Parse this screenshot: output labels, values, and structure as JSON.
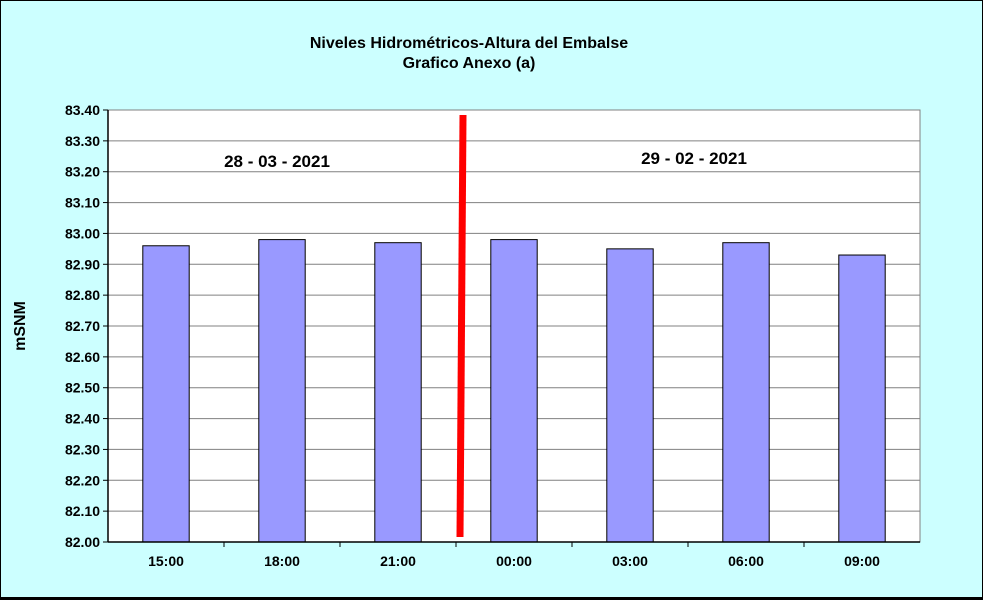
{
  "chart_data": {
    "type": "bar",
    "title": "Niveles Hidrométricos-Altura del Embalse",
    "subtitle": "Grafico Anexo (a)",
    "ylabel": "mSNM",
    "xlabel": "",
    "categories": [
      "15:00",
      "18:00",
      "21:00",
      "00:00",
      "03:00",
      "06:00",
      "09:00"
    ],
    "values": [
      82.96,
      82.98,
      82.97,
      82.98,
      82.95,
      82.97,
      82.93
    ],
    "ylim": [
      82.0,
      83.4
    ],
    "yticks": [
      "82.00",
      "82.10",
      "82.20",
      "82.30",
      "82.40",
      "82.50",
      "82.60",
      "82.70",
      "82.80",
      "82.90",
      "83.00",
      "83.10",
      "83.20",
      "83.30",
      "83.40"
    ],
    "grid": true,
    "date_annotations": [
      "28 - 03 - 2021",
      "29 - 02 - 2021"
    ],
    "colors": {
      "background": "#ccffff",
      "plot_area": "#ffffff",
      "bar_fill": "#9999ff",
      "bar_stroke": "#000000",
      "divider": "#ff0000",
      "grid": "#808080"
    }
  }
}
